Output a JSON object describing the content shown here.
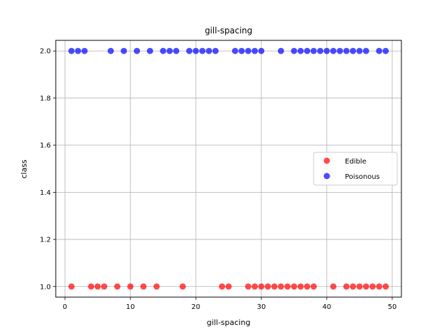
{
  "chart_data": {
    "type": "scatter",
    "title": "gill-spacing",
    "xlabel": "gill-spacing",
    "ylabel": "class",
    "xlim": [
      -1.4,
      51.4
    ],
    "ylim": [
      0.955,
      2.045
    ],
    "xticks": [
      0,
      10,
      20,
      30,
      40,
      50
    ],
    "yticks": [
      1.0,
      1.2,
      1.4,
      1.6,
      1.8,
      2.0
    ],
    "ytick_labels": [
      "1.0",
      "1.2",
      "1.4",
      "1.6",
      "1.8",
      "2.0"
    ],
    "grid": true,
    "legend_position": "center-right",
    "series": [
      {
        "name": "Edible",
        "color": "#ff0000",
        "y": 1.0,
        "x": [
          1,
          4,
          5,
          6,
          8,
          10,
          12,
          14,
          18,
          24,
          25,
          28,
          29,
          30,
          31,
          32,
          33,
          34,
          35,
          36,
          37,
          38,
          41,
          43,
          44,
          45,
          46,
          47,
          48,
          49
        ]
      },
      {
        "name": "Poisonous",
        "color": "#0000ff",
        "y": 2.0,
        "x": [
          1,
          2,
          3,
          7,
          9,
          11,
          13,
          15,
          16,
          17,
          19,
          20,
          21,
          22,
          23,
          26,
          27,
          28,
          29,
          30,
          33,
          35,
          36,
          37,
          38,
          39,
          40,
          41,
          42,
          43,
          44,
          45,
          46,
          48,
          49
        ]
      }
    ]
  }
}
